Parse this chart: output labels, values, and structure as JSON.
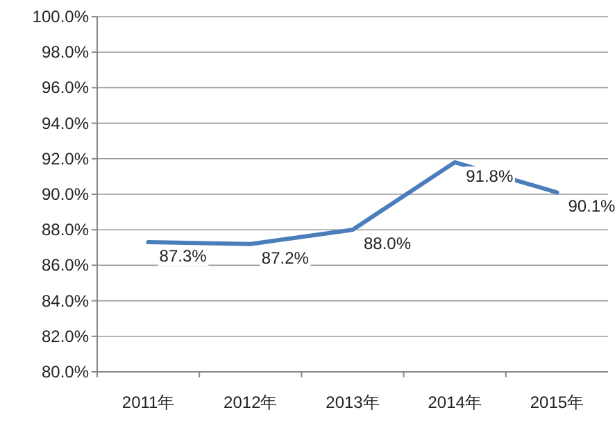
{
  "chart_data": {
    "type": "line",
    "categories": [
      "2011年",
      "2012年",
      "2013年",
      "2014年",
      "2015年"
    ],
    "series": [
      {
        "color": "#4a7ebb",
        "values": [
          87.3,
          87.2,
          88.0,
          91.8,
          90.1
        ],
        "value_labels": [
          "87.3%",
          "87.2%",
          "88.0%",
          "91.8%",
          "90.1%"
        ]
      }
    ],
    "ylim": [
      80,
      100
    ],
    "yticks": [
      {
        "value": 80,
        "label": "80.0%"
      },
      {
        "value": 82,
        "label": "82.0%"
      },
      {
        "value": 84,
        "label": "84.0%"
      },
      {
        "value": 86,
        "label": "86.0%"
      },
      {
        "value": 88,
        "label": "88.0%"
      },
      {
        "value": 90,
        "label": "90.0%"
      },
      {
        "value": 92,
        "label": "92.0%"
      },
      {
        "value": 94,
        "label": "94.0%"
      },
      {
        "value": 96,
        "label": "96.0%"
      },
      {
        "value": 98,
        "label": "98.0%"
      },
      {
        "value": 100,
        "label": "100.0%"
      }
    ],
    "grid": "y",
    "marker": "none",
    "line_style": "solid"
  }
}
